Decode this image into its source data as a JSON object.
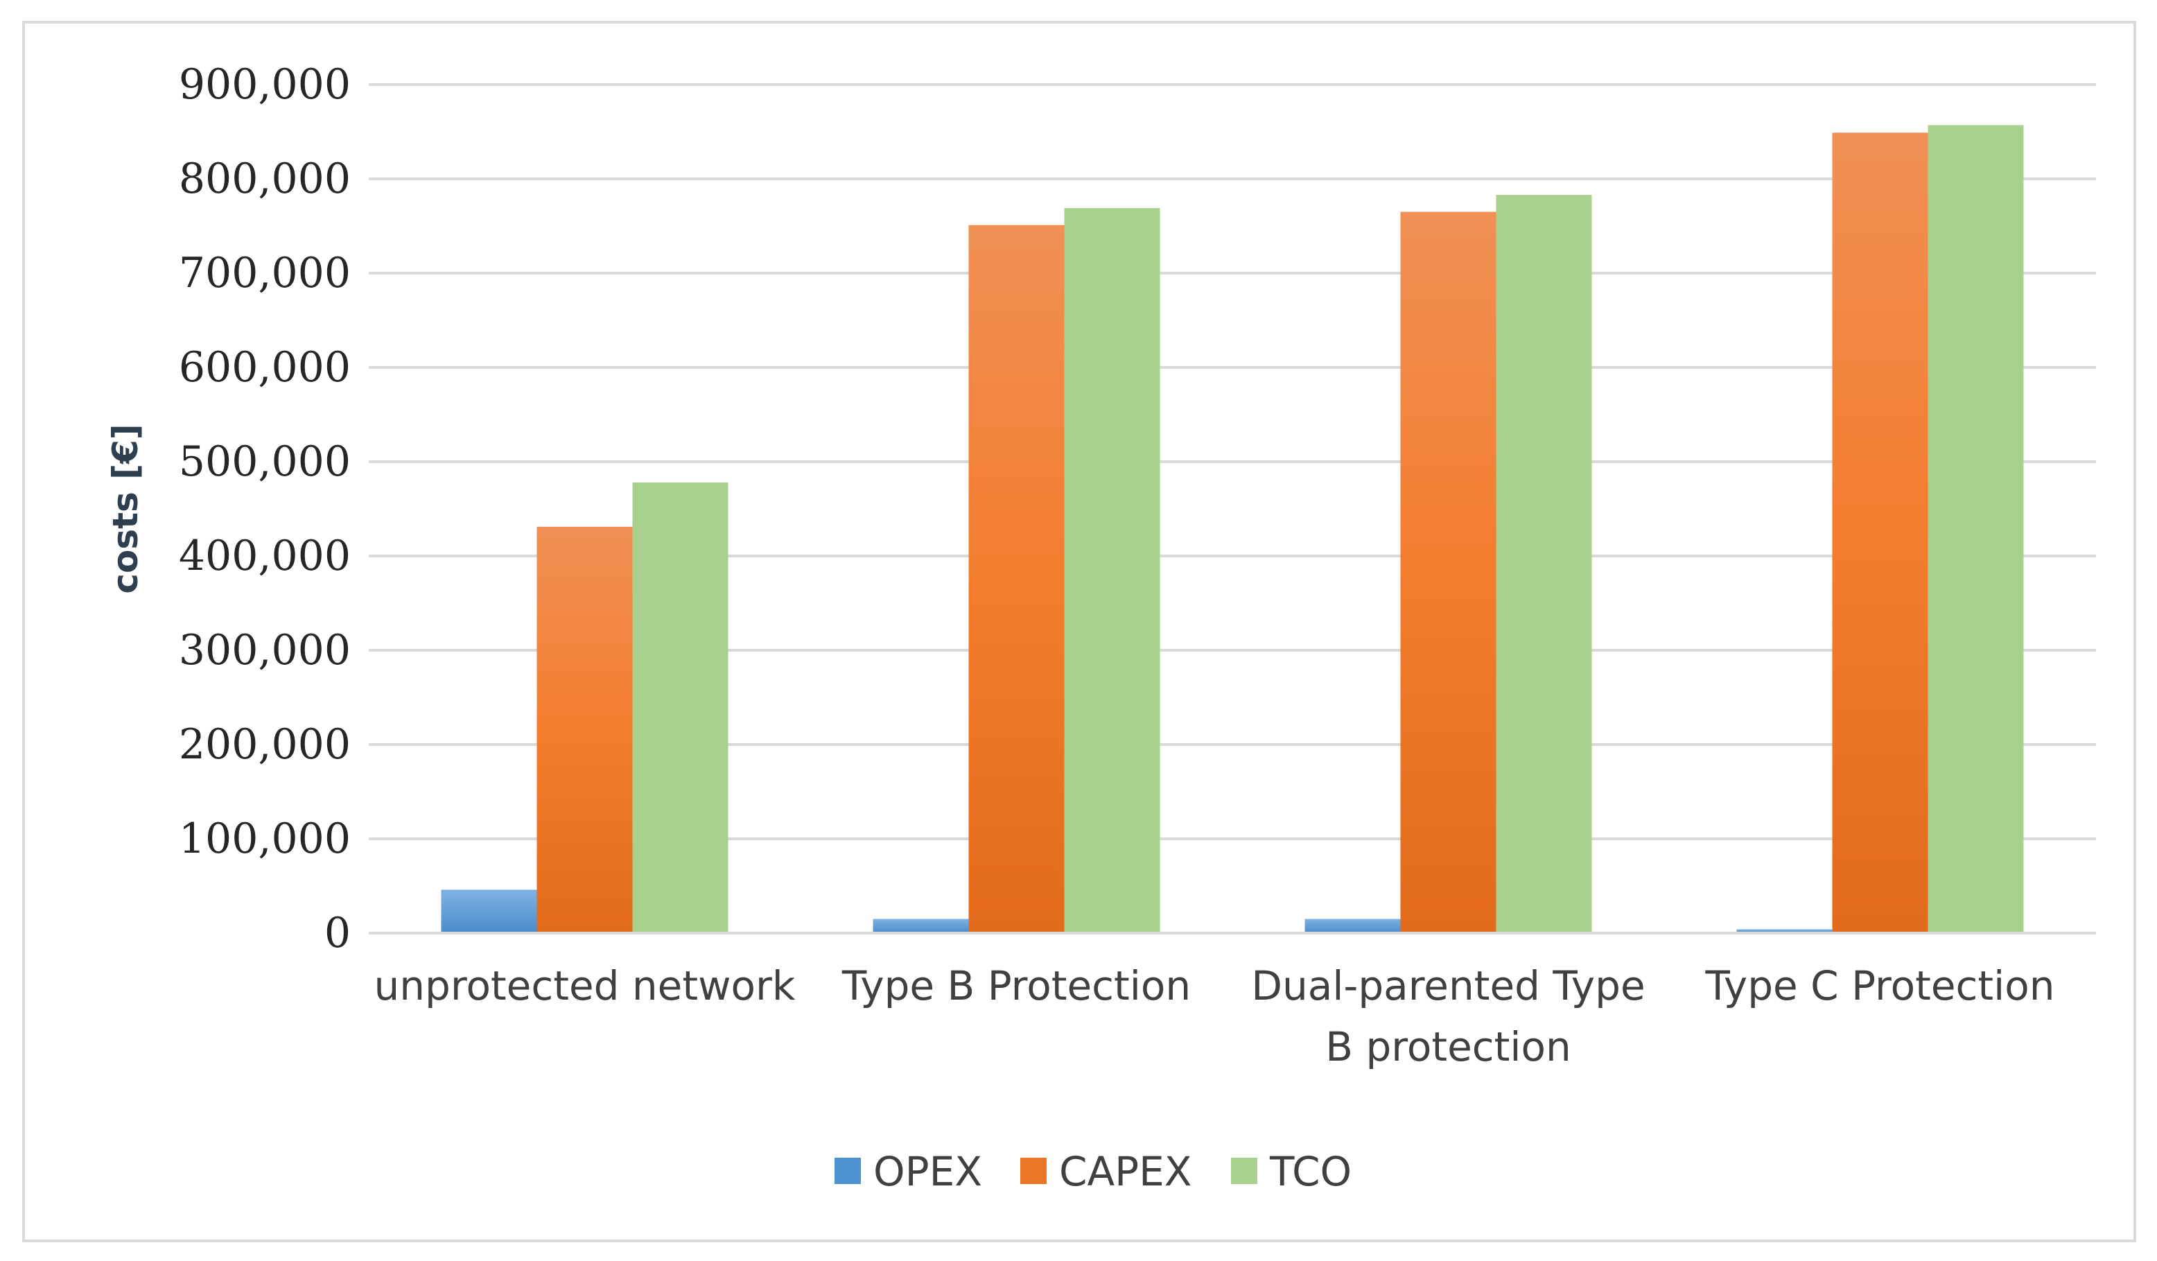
{
  "chart_data": {
    "type": "bar",
    "categories": [
      [
        "unprotected network"
      ],
      [
        "Type B Protection"
      ],
      [
        "Dual-parented Type",
        "B protection"
      ],
      [
        "Type C Protection"
      ]
    ],
    "series": [
      {
        "name": "OPEX",
        "values": [
          46000,
          15000,
          15000,
          4000
        ],
        "color": "#5b9bd5"
      },
      {
        "name": "CAPEX",
        "values": [
          431000,
          751000,
          765000,
          849000
        ],
        "color": "#ed7d31"
      },
      {
        "name": "TCO",
        "values": [
          478000,
          769000,
          783000,
          857000
        ],
        "color": "#a9d18e"
      }
    ],
    "ylabel": "costs [€]",
    "ylim": [
      0,
      900000
    ],
    "yticks": [
      0,
      100000,
      200000,
      300000,
      400000,
      500000,
      600000,
      700000,
      800000,
      900000
    ],
    "ytick_labels": [
      "0",
      "100,000",
      "200,000",
      "300,000",
      "400,000",
      "500,000",
      "600,000",
      "700,000",
      "800,000",
      "900,000"
    ],
    "grid": true,
    "legend_position": "bottom"
  }
}
